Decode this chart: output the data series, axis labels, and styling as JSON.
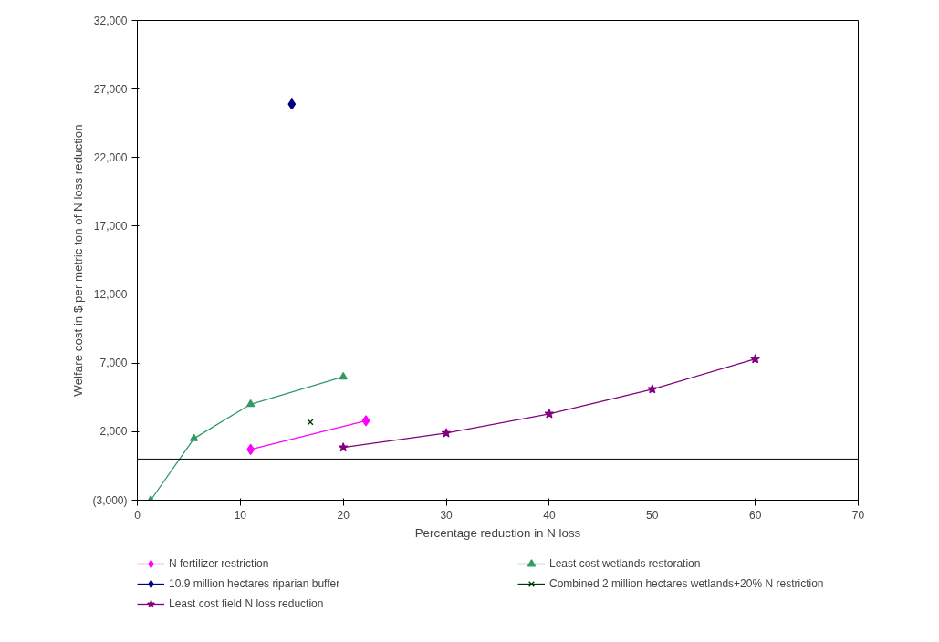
{
  "chart_data": {
    "type": "line",
    "xlabel": "Percentage reduction in N loss",
    "ylabel": "Welfare cost in $ per metric ton of N loss reduction",
    "xlim": [
      0,
      70
    ],
    "xticks": [
      0,
      10,
      20,
      30,
      40,
      50,
      60,
      70
    ],
    "ylim": [
      -3000,
      32000
    ],
    "yticks": [
      {
        "value": -3000,
        "label": "(3,000)"
      },
      {
        "value": 2000,
        "label": "2,000"
      },
      {
        "value": 7000,
        "label": "7,000"
      },
      {
        "value": 12000,
        "label": "12,000"
      },
      {
        "value": 17000,
        "label": "17,000"
      },
      {
        "value": 22000,
        "label": "22,000"
      },
      {
        "value": 27000,
        "label": "27,000"
      },
      {
        "value": 32000,
        "label": "32,000"
      }
    ],
    "grid": false,
    "legend": "bottom",
    "ref_lines": [
      {
        "axis": "y",
        "value": 0,
        "label": null,
        "color": "#000000"
      }
    ],
    "series": [
      {
        "name": "N fertilizer restriction",
        "color": "#ff00ff",
        "marker": "diamond",
        "x": [
          11,
          22.2
        ],
        "values": [
          700,
          2800
        ]
      },
      {
        "name": "Least cost wetlands restoration",
        "color": "#339966",
        "marker": "triangle",
        "x": [
          1.3,
          5.5,
          11,
          20
        ],
        "values": [
          -3000,
          1500,
          4000,
          6000
        ]
      },
      {
        "name": "10.9 million hectares riparian buffer",
        "color": "#000080",
        "marker": "diamond",
        "x": [
          15
        ],
        "values": [
          25900
        ]
      },
      {
        "name": "Combined 2 million hectares wetlands+20% N restriction",
        "color": "#003300",
        "marker": "cross",
        "x": [
          16.8
        ],
        "values": [
          2700
        ]
      },
      {
        "name": "Least cost field N loss reduction",
        "color": "#800080",
        "marker": "star",
        "x": [
          20,
          30,
          40,
          50,
          60
        ],
        "values": [
          850,
          1900,
          3300,
          5100,
          7300
        ]
      }
    ]
  }
}
